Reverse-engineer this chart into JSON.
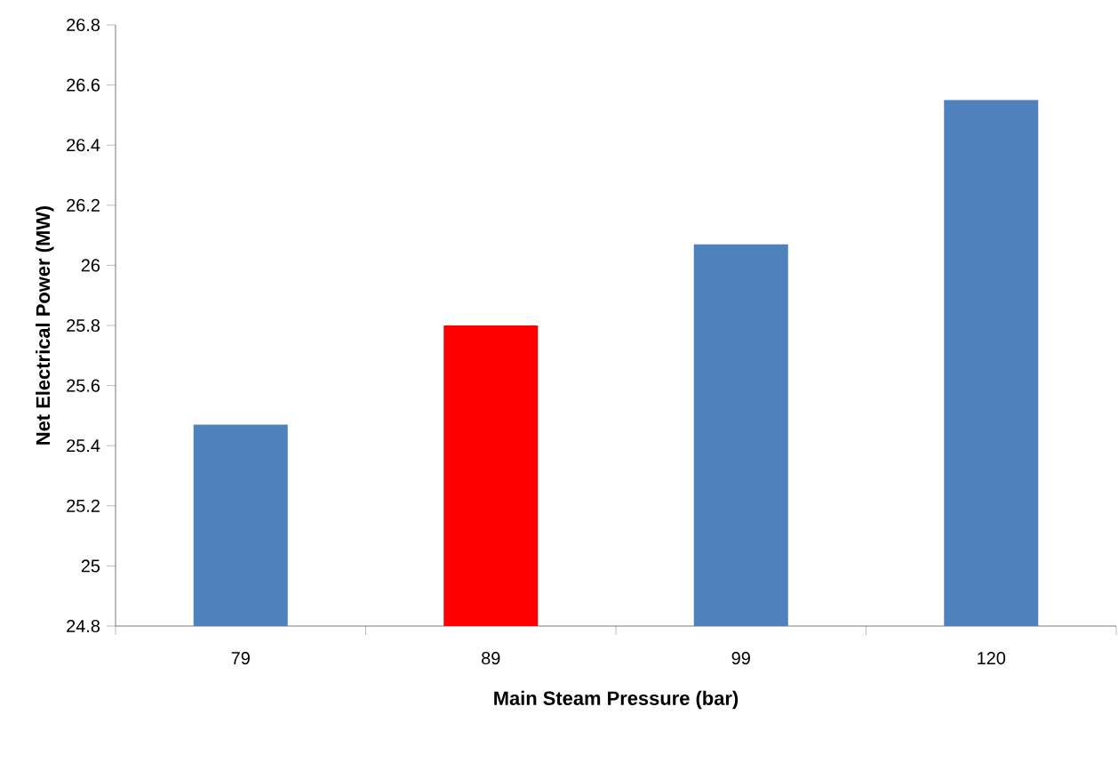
{
  "chart_data": {
    "type": "bar",
    "xlabel": "Main Steam Pressure (bar)",
    "ylabel": "Net Electrical Power (MW)",
    "categories": [
      "79",
      "89",
      "99",
      "120"
    ],
    "values": [
      25.47,
      25.8,
      26.07,
      26.55
    ],
    "colors": [
      "#4f81bd",
      "#ff0000",
      "#4f81bd",
      "#4f81bd"
    ],
    "ylim": [
      24.8,
      26.8
    ],
    "yticks": [
      24.8,
      25,
      25.2,
      25.4,
      25.6,
      25.8,
      26,
      26.2,
      26.4,
      26.6,
      26.8
    ]
  }
}
